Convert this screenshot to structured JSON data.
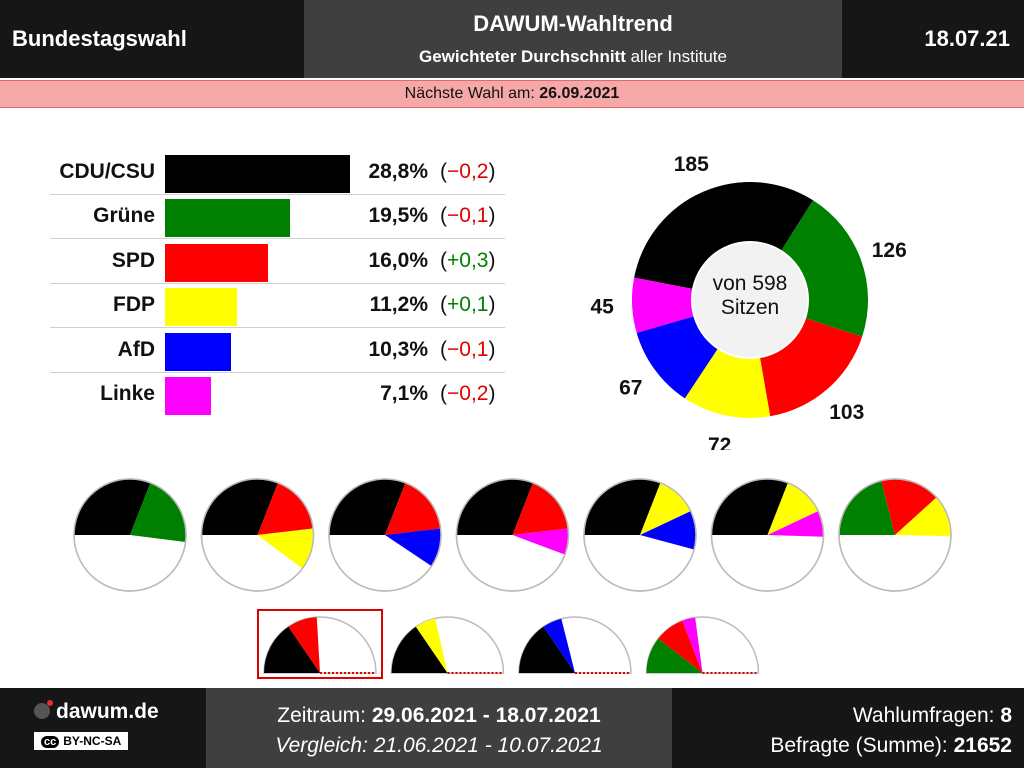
{
  "header": {
    "left": "Bundestagswahl",
    "title": "DAWUM-Wahltrend",
    "subtitle_bold": "Gewichteter Durchschnitt",
    "subtitle_rest": " aller Institute",
    "date": "18.07.21"
  },
  "banner": {
    "label": "Nächste Wahl am: ",
    "date": "26.09.2021"
  },
  "donut": {
    "center_line1": "von 598",
    "center_line2": "Sitzen"
  },
  "chart_data": [
    {
      "type": "bar",
      "categories": [
        "CDU/CSU",
        "Grüne",
        "SPD",
        "FDP",
        "AfD",
        "Linke"
      ],
      "values": [
        28.8,
        19.5,
        16.0,
        11.2,
        10.3,
        7.1
      ],
      "value_labels": [
        "28,8%",
        "19,5%",
        "16,0%",
        "11,2%",
        "10,3%",
        "7,1%"
      ],
      "changes": [
        -0.2,
        -0.1,
        0.3,
        0.1,
        -0.1,
        -0.2
      ],
      "change_labels": [
        "(−0,2)",
        "(−0,1)",
        "(+0,3)",
        "(+0,1)",
        "(−0,1)",
        "(−0,2)"
      ],
      "colors": [
        "#000000",
        "#008000",
        "#ff0000",
        "#ffff00",
        "#0000ff",
        "#ff00ff"
      ]
    },
    {
      "type": "pie",
      "total": 598,
      "categories": [
        "CDU/CSU",
        "Grüne",
        "SPD",
        "FDP",
        "AfD",
        "Linke"
      ],
      "values": [
        185,
        126,
        103,
        72,
        67,
        45
      ],
      "colors": [
        "#000000",
        "#008000",
        "#ff0000",
        "#ffff00",
        "#0000ff",
        "#ff00ff"
      ]
    }
  ],
  "coalitions": [
    [
      "CDU/CSU",
      "Grüne"
    ],
    [
      "CDU/CSU",
      "SPD",
      "FDP"
    ],
    [
      "CDU/CSU",
      "SPD",
      "AfD"
    ],
    [
      "CDU/CSU",
      "SPD",
      "Linke"
    ],
    [
      "CDU/CSU",
      "FDP",
      "AfD"
    ],
    [
      "CDU/CSU",
      "FDP",
      "Linke"
    ],
    [
      "Grüne",
      "SPD",
      "FDP"
    ]
  ],
  "coalitions_half": [
    {
      "parties": [
        "CDU/CSU",
        "SPD"
      ],
      "highlighted": true
    },
    {
      "parties": [
        "CDU/CSU",
        "FDP"
      ],
      "highlighted": false
    },
    {
      "parties": [
        "CDU/CSU",
        "AfD"
      ],
      "highlighted": false
    },
    {
      "parties": [
        "Grüne",
        "SPD",
        "Linke"
      ],
      "highlighted": false
    }
  ],
  "footer": {
    "site": "dawum.de",
    "license": "BY-NC-SA",
    "cc": "cc",
    "period_label": "Zeitraum: ",
    "period": "29.06.2021 - 18.07.2021",
    "compare_label": "Vergleich: ",
    "compare": "21.06.2021 - 10.07.2021",
    "polls_label": "Wahlumfragen: ",
    "polls": "8",
    "respondents_label": "Befragte (Summe): ",
    "respondents": "21652"
  }
}
